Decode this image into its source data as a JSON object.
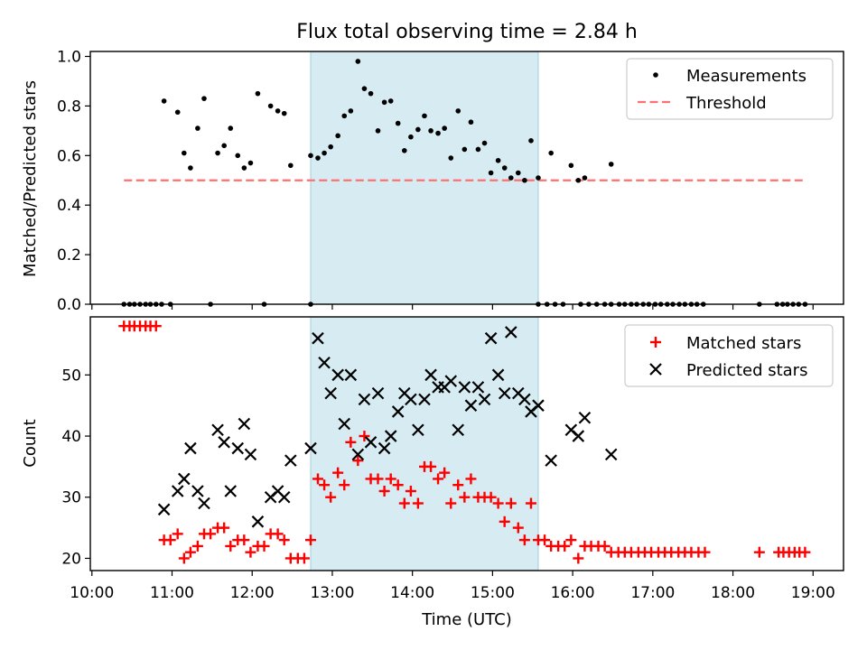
{
  "title": "Flux total observing time = 2.84 h",
  "chart_data": [
    {
      "type": "scatter",
      "panel": "top",
      "ylabel": "Matched/Predicted stars",
      "xlabel": "",
      "xlim": [
        9.98,
        19.38
      ],
      "ylim": [
        0.0,
        1.02
      ],
      "yticks": [
        0.0,
        0.2,
        0.4,
        0.6,
        0.8,
        1.0
      ],
      "ytick_labels": [
        "0.0",
        "0.2",
        "0.4",
        "0.6",
        "0.8",
        "1.0"
      ],
      "shaded_span": [
        12.73,
        15.57
      ],
      "legend": [
        "Measurements",
        "Threshold"
      ],
      "legend_position": "top-right",
      "threshold": {
        "name": "Threshold",
        "y": 0.5,
        "x": [
          10.4,
          18.9
        ]
      },
      "series": [
        {
          "name": "Measurements",
          "points": [
            [
              10.4,
              0
            ],
            [
              10.47,
              0
            ],
            [
              10.53,
              0
            ],
            [
              10.6,
              0
            ],
            [
              10.67,
              0
            ],
            [
              10.73,
              0
            ],
            [
              10.8,
              0
            ],
            [
              10.87,
              0
            ],
            [
              10.98,
              0
            ],
            [
              11.48,
              0
            ],
            [
              12.15,
              0
            ],
            [
              12.73,
              0
            ],
            [
              15.57,
              0
            ],
            [
              15.68,
              0
            ],
            [
              15.78,
              0
            ],
            [
              15.88,
              0
            ],
            [
              16.1,
              0
            ],
            [
              16.2,
              0
            ],
            [
              16.3,
              0
            ],
            [
              16.4,
              0
            ],
            [
              16.48,
              0
            ],
            [
              16.58,
              0
            ],
            [
              16.65,
              0
            ],
            [
              16.73,
              0
            ],
            [
              16.8,
              0
            ],
            [
              16.88,
              0
            ],
            [
              16.95,
              0
            ],
            [
              17.03,
              0
            ],
            [
              17.1,
              0
            ],
            [
              17.18,
              0
            ],
            [
              17.25,
              0
            ],
            [
              17.33,
              0
            ],
            [
              17.4,
              0
            ],
            [
              17.48,
              0
            ],
            [
              17.55,
              0
            ],
            [
              17.63,
              0
            ],
            [
              18.33,
              0
            ],
            [
              18.55,
              0
            ],
            [
              18.62,
              0
            ],
            [
              18.68,
              0
            ],
            [
              18.75,
              0
            ],
            [
              18.82,
              0
            ],
            [
              18.9,
              0
            ],
            [
              10.9,
              0.82
            ],
            [
              11.07,
              0.775
            ],
            [
              11.15,
              0.61
            ],
            [
              11.23,
              0.55
            ],
            [
              11.32,
              0.71
            ],
            [
              11.4,
              0.83
            ],
            [
              11.57,
              0.61
            ],
            [
              11.65,
              0.64
            ],
            [
              11.73,
              0.71
            ],
            [
              11.82,
              0.6
            ],
            [
              11.9,
              0.55
            ],
            [
              11.98,
              0.57
            ],
            [
              12.07,
              0.85
            ],
            [
              12.23,
              0.8
            ],
            [
              12.32,
              0.78
            ],
            [
              12.4,
              0.77
            ],
            [
              12.48,
              0.56
            ],
            [
              12.73,
              0.6
            ],
            [
              12.82,
              0.59
            ],
            [
              12.9,
              0.61
            ],
            [
              12.98,
              0.635
            ],
            [
              13.07,
              0.68
            ],
            [
              13.15,
              0.76
            ],
            [
              13.23,
              0.78
            ],
            [
              13.32,
              0.98
            ],
            [
              13.4,
              0.87
            ],
            [
              13.48,
              0.85
            ],
            [
              13.57,
              0.7
            ],
            [
              13.65,
              0.815
            ],
            [
              13.73,
              0.82
            ],
            [
              13.82,
              0.73
            ],
            [
              13.9,
              0.62
            ],
            [
              13.98,
              0.675
            ],
            [
              14.07,
              0.705
            ],
            [
              14.15,
              0.76
            ],
            [
              14.23,
              0.7
            ],
            [
              14.32,
              0.69
            ],
            [
              14.4,
              0.71
            ],
            [
              14.48,
              0.59
            ],
            [
              14.57,
              0.78
            ],
            [
              14.65,
              0.625
            ],
            [
              14.73,
              0.735
            ],
            [
              14.82,
              0.625
            ],
            [
              14.9,
              0.65
            ],
            [
              14.98,
              0.53
            ],
            [
              15.07,
              0.58
            ],
            [
              15.15,
              0.55
            ],
            [
              15.23,
              0.51
            ],
            [
              15.32,
              0.53
            ],
            [
              15.4,
              0.5
            ],
            [
              15.48,
              0.66
            ],
            [
              15.57,
              0.51
            ],
            [
              15.73,
              0.61
            ],
            [
              15.98,
              0.56
            ],
            [
              16.07,
              0.5
            ],
            [
              16.15,
              0.51
            ],
            [
              16.48,
              0.565
            ]
          ]
        }
      ]
    },
    {
      "type": "scatter",
      "panel": "bottom",
      "ylabel": "Count",
      "xlabel": "Time (UTC)",
      "xlim": [
        9.98,
        19.38
      ],
      "ylim": [
        18.0,
        59.5
      ],
      "yticks": [
        20,
        30,
        40,
        50
      ],
      "ytick_labels": [
        "20",
        "30",
        "40",
        "50"
      ],
      "xticks": [
        10,
        11,
        12,
        13,
        14,
        15,
        16,
        17,
        18,
        19
      ],
      "xtick_labels": [
        "10:00",
        "11:00",
        "12:00",
        "13:00",
        "14:00",
        "15:00",
        "16:00",
        "17:00",
        "18:00",
        "19:00"
      ],
      "shaded_span": [
        12.73,
        15.57
      ],
      "legend": [
        "Matched stars",
        "Predicted stars"
      ],
      "legend_position": "top-right",
      "series": [
        {
          "name": "Matched stars",
          "marker": "+",
          "color": "#ff0000",
          "points": [
            [
              10.4,
              58
            ],
            [
              10.47,
              58
            ],
            [
              10.53,
              58
            ],
            [
              10.6,
              58
            ],
            [
              10.67,
              58
            ],
            [
              10.73,
              58
            ],
            [
              10.8,
              58
            ],
            [
              10.9,
              23
            ],
            [
              10.98,
              23
            ],
            [
              11.07,
              24
            ],
            [
              11.15,
              20
            ],
            [
              11.23,
              21
            ],
            [
              11.32,
              22
            ],
            [
              11.4,
              24
            ],
            [
              11.48,
              24
            ],
            [
              11.57,
              25
            ],
            [
              11.65,
              25
            ],
            [
              11.73,
              22
            ],
            [
              11.82,
              23
            ],
            [
              11.9,
              23
            ],
            [
              11.98,
              21
            ],
            [
              12.07,
              22
            ],
            [
              12.15,
              22
            ],
            [
              12.23,
              24
            ],
            [
              12.32,
              24
            ],
            [
              12.4,
              23
            ],
            [
              12.48,
              20
            ],
            [
              12.57,
              20
            ],
            [
              12.65,
              20
            ],
            [
              12.73,
              23
            ],
            [
              12.82,
              33
            ],
            [
              12.9,
              32
            ],
            [
              12.98,
              30
            ],
            [
              13.07,
              34
            ],
            [
              13.15,
              32
            ],
            [
              13.23,
              39
            ],
            [
              13.32,
              36
            ],
            [
              13.4,
              40
            ],
            [
              13.48,
              33
            ],
            [
              13.57,
              33
            ],
            [
              13.65,
              31
            ],
            [
              13.73,
              33
            ],
            [
              13.82,
              32
            ],
            [
              13.9,
              29
            ],
            [
              13.98,
              31
            ],
            [
              14.07,
              29
            ],
            [
              14.15,
              35
            ],
            [
              14.23,
              35
            ],
            [
              14.32,
              33
            ],
            [
              14.4,
              34
            ],
            [
              14.48,
              29
            ],
            [
              14.57,
              32
            ],
            [
              14.65,
              30
            ],
            [
              14.73,
              33
            ],
            [
              14.82,
              30
            ],
            [
              14.9,
              30
            ],
            [
              14.98,
              30
            ],
            [
              15.07,
              29
            ],
            [
              15.15,
              26
            ],
            [
              15.23,
              29
            ],
            [
              15.32,
              25
            ],
            [
              15.4,
              23
            ],
            [
              15.48,
              29
            ],
            [
              15.57,
              23
            ],
            [
              15.65,
              23
            ],
            [
              15.73,
              22
            ],
            [
              15.82,
              22
            ],
            [
              15.9,
              22
            ],
            [
              15.98,
              23
            ],
            [
              16.07,
              20
            ],
            [
              16.15,
              22
            ],
            [
              16.23,
              22
            ],
            [
              16.32,
              22
            ],
            [
              16.4,
              22
            ],
            [
              16.48,
              21
            ],
            [
              16.57,
              21
            ],
            [
              16.65,
              21
            ],
            [
              16.73,
              21
            ],
            [
              16.82,
              21
            ],
            [
              16.9,
              21
            ],
            [
              16.98,
              21
            ],
            [
              17.07,
              21
            ],
            [
              17.15,
              21
            ],
            [
              17.23,
              21
            ],
            [
              17.32,
              21
            ],
            [
              17.4,
              21
            ],
            [
              17.48,
              21
            ],
            [
              17.57,
              21
            ],
            [
              17.65,
              21
            ],
            [
              18.33,
              21
            ],
            [
              18.57,
              21
            ],
            [
              18.63,
              21
            ],
            [
              18.7,
              21
            ],
            [
              18.77,
              21
            ],
            [
              18.83,
              21
            ],
            [
              18.9,
              21
            ]
          ]
        },
        {
          "name": "Predicted stars",
          "marker": "x",
          "color": "#000000",
          "points": [
            [
              10.9,
              28
            ],
            [
              11.07,
              31
            ],
            [
              11.15,
              33
            ],
            [
              11.23,
              38
            ],
            [
              11.32,
              31
            ],
            [
              11.4,
              29
            ],
            [
              11.57,
              41
            ],
            [
              11.65,
              39
            ],
            [
              11.73,
              31
            ],
            [
              11.82,
              38
            ],
            [
              11.9,
              42
            ],
            [
              11.98,
              37
            ],
            [
              12.07,
              26
            ],
            [
              12.23,
              30
            ],
            [
              12.32,
              31
            ],
            [
              12.4,
              30
            ],
            [
              12.48,
              36
            ],
            [
              12.73,
              38
            ],
            [
              12.82,
              56
            ],
            [
              12.9,
              52
            ],
            [
              12.98,
              47
            ],
            [
              13.07,
              50
            ],
            [
              13.15,
              42
            ],
            [
              13.23,
              50
            ],
            [
              13.32,
              37
            ],
            [
              13.4,
              46
            ],
            [
              13.48,
              39
            ],
            [
              13.57,
              47
            ],
            [
              13.65,
              38
            ],
            [
              13.73,
              40
            ],
            [
              13.82,
              44
            ],
            [
              13.9,
              47
            ],
            [
              13.98,
              46
            ],
            [
              14.07,
              41
            ],
            [
              14.15,
              46
            ],
            [
              14.23,
              50
            ],
            [
              14.32,
              48
            ],
            [
              14.4,
              48
            ],
            [
              14.48,
              49
            ],
            [
              14.57,
              41
            ],
            [
              14.65,
              48
            ],
            [
              14.73,
              45
            ],
            [
              14.82,
              48
            ],
            [
              14.9,
              46
            ],
            [
              14.98,
              56
            ],
            [
              15.07,
              50
            ],
            [
              15.15,
              47
            ],
            [
              15.23,
              57
            ],
            [
              15.32,
              47
            ],
            [
              15.4,
              46
            ],
            [
              15.48,
              44
            ],
            [
              15.57,
              45
            ],
            [
              15.73,
              36
            ],
            [
              15.98,
              41
            ],
            [
              16.07,
              40
            ],
            [
              16.15,
              43
            ],
            [
              16.48,
              37
            ]
          ]
        }
      ]
    }
  ]
}
